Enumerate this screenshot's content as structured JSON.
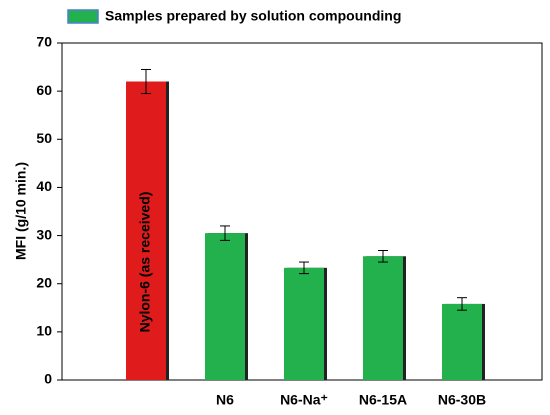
{
  "chart_data": {
    "type": "bar",
    "legend": {
      "text": "Samples prepared by solution compounding",
      "color": "#22b14c"
    },
    "ylabel": "MFI (g/10 min.)",
    "categories": [
      "Nylon-6 (as received)",
      "N6",
      "N6-Na⁺",
      "N6-15A",
      "N6-30B"
    ],
    "values": [
      62,
      30.5,
      23.3,
      25.7,
      15.8
    ],
    "errors": [
      2.5,
      1.5,
      1.2,
      1.2,
      1.3
    ],
    "colors": [
      "#e01b1b",
      "#22b14c",
      "#22b14c",
      "#22b14c",
      "#22b14c"
    ],
    "ylim": [
      0,
      70
    ],
    "yticks": [
      0,
      10,
      20,
      30,
      40,
      50,
      60,
      70
    ]
  }
}
